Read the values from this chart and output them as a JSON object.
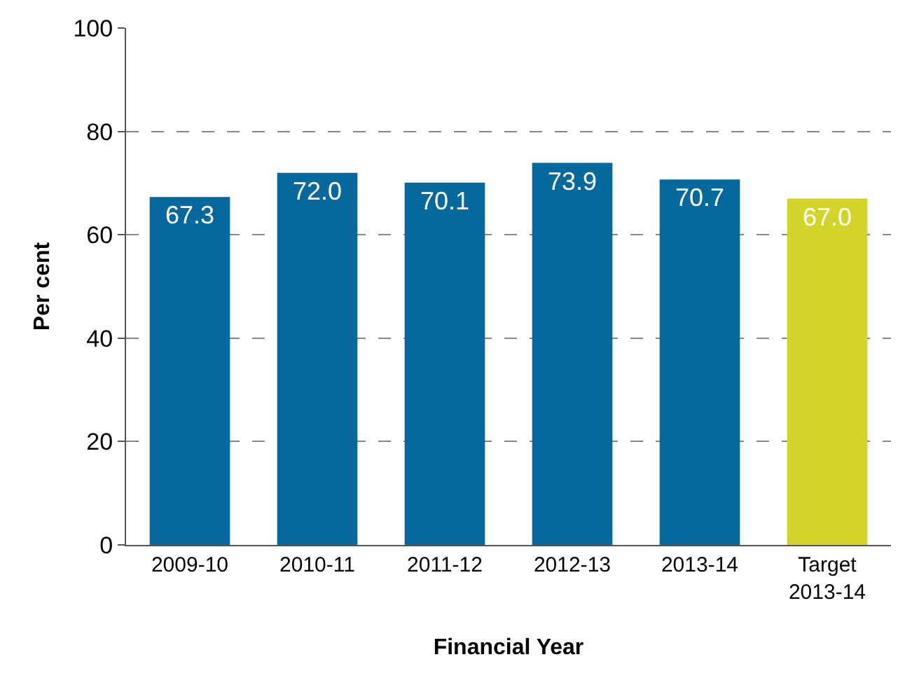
{
  "chart_data": {
    "type": "bar",
    "xlabel": "Financial Year",
    "ylabel": "Per cent",
    "categories": [
      "2009-10",
      "2010-11",
      "2011-12",
      "2012-13",
      "2013-14",
      "Target\n2013-14"
    ],
    "values": [
      67.3,
      72.0,
      70.1,
      73.9,
      70.7,
      67.0
    ],
    "value_labels": [
      "67.3",
      "72.0",
      "70.1",
      "73.9",
      "70.7",
      "67.0"
    ],
    "colors": [
      "#05699e",
      "#05699e",
      "#05699e",
      "#05699e",
      "#05699e",
      "#d2d42a"
    ],
    "ylim": [
      0,
      100
    ],
    "yticks": [
      0,
      20,
      40,
      60,
      80,
      100
    ],
    "grid": "y"
  }
}
